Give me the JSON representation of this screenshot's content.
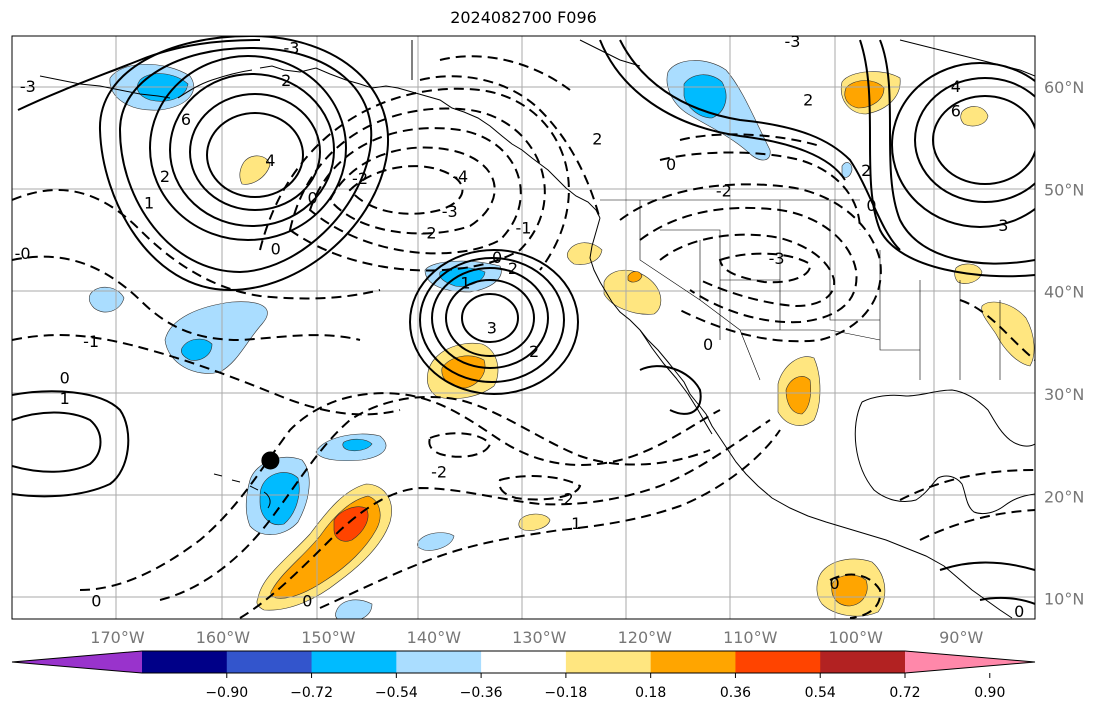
{
  "title": "2024082700 F096",
  "map": {
    "projection": "lon-lat",
    "lon_range": [
      -180,
      -83
    ],
    "lat_range": [
      8,
      65
    ],
    "gridlines": true,
    "lon_ticks": [
      {
        "lon": -170,
        "label": "170°W"
      },
      {
        "lon": -160,
        "label": "160°W"
      },
      {
        "lon": -150,
        "label": "150°W"
      },
      {
        "lon": -140,
        "label": "140°W"
      },
      {
        "lon": -130,
        "label": "130°W"
      },
      {
        "lon": -120,
        "label": "120°W"
      },
      {
        "lon": -110,
        "label": "110°W"
      },
      {
        "lon": -100,
        "label": "100°W"
      },
      {
        "lon": -90,
        "label": "90°W"
      }
    ],
    "lat_ticks": [
      {
        "lat": 60,
        "label": "60°N"
      },
      {
        "lat": 50,
        "label": "50°N"
      },
      {
        "lat": 40,
        "label": "40°N"
      },
      {
        "lat": 30,
        "label": "30°N"
      },
      {
        "lat": 20,
        "label": "20°N"
      },
      {
        "lat": 10,
        "label": "10°N"
      }
    ],
    "contour_labels": [
      {
        "text": "6",
        "lon": -163.5,
        "lat": 56.9
      },
      {
        "text": "4",
        "lon": -155.5,
        "lat": 52.9
      },
      {
        "text": "2",
        "lon": -165.5,
        "lat": 51.3
      },
      {
        "text": "1",
        "lon": -167.0,
        "lat": 48.7
      },
      {
        "text": "0",
        "lon": -151.5,
        "lat": 49.2
      },
      {
        "text": "0",
        "lon": -155.0,
        "lat": 44.2
      },
      {
        "text": "2",
        "lon": -154.0,
        "lat": 60.7
      },
      {
        "text": "-3",
        "lon": -178.5,
        "lat": 60.1
      },
      {
        "text": "-0",
        "lon": -179.0,
        "lat": 43.8
      },
      {
        "text": "-1",
        "lon": -172.5,
        "lat": 35.2
      },
      {
        "text": "0",
        "lon": -175.0,
        "lat": 31.6
      },
      {
        "text": "1",
        "lon": -175.0,
        "lat": 29.6
      },
      {
        "text": "-2",
        "lon": -147.0,
        "lat": 51.1
      },
      {
        "text": "-4",
        "lon": -137.5,
        "lat": 51.3
      },
      {
        "text": "-3",
        "lon": -138.5,
        "lat": 47.9
      },
      {
        "text": "-2",
        "lon": -140.5,
        "lat": 45.8
      },
      {
        "text": "-1",
        "lon": -131.5,
        "lat": 46.3
      },
      {
        "text": "0",
        "lon": -134.0,
        "lat": 43.4
      },
      {
        "text": "1",
        "lon": -137.0,
        "lat": 40.9
      },
      {
        "text": "2",
        "lon": -132.5,
        "lat": 42.3
      },
      {
        "text": "3",
        "lon": -134.5,
        "lat": 36.5
      },
      {
        "text": "2",
        "lon": -130.5,
        "lat": 34.2
      },
      {
        "text": "-3",
        "lon": -153.5,
        "lat": 63.9
      },
      {
        "text": "2",
        "lon": -124.5,
        "lat": 55.0
      },
      {
        "text": "0",
        "lon": -117.5,
        "lat": 52.5
      },
      {
        "text": "-2",
        "lon": -112.5,
        "lat": 49.9
      },
      {
        "text": "-3",
        "lon": -107.5,
        "lat": 43.3
      },
      {
        "text": "2",
        "lon": -104.5,
        "lat": 58.8
      },
      {
        "text": "-3",
        "lon": -106.0,
        "lat": 64.5
      },
      {
        "text": "4",
        "lon": -90.5,
        "lat": 60.1
      },
      {
        "text": "6",
        "lon": -90.5,
        "lat": 57.7
      },
      {
        "text": "2",
        "lon": -99.0,
        "lat": 51.9
      },
      {
        "text": "0",
        "lon": -98.5,
        "lat": 48.5
      },
      {
        "text": "3",
        "lon": -86.0,
        "lat": 46.5
      },
      {
        "text": "0",
        "lon": -114.0,
        "lat": 34.9
      },
      {
        "text": "-2",
        "lon": -139.5,
        "lat": 22.4
      },
      {
        "text": "-2",
        "lon": -127.5,
        "lat": 19.8
      },
      {
        "text": "1",
        "lon": -126.5,
        "lat": 17.4
      },
      {
        "text": "0",
        "lon": -172.0,
        "lat": 9.8
      },
      {
        "text": "0",
        "lon": -152.0,
        "lat": 9.8
      },
      {
        "text": "0",
        "lon": -102.0,
        "lat": 11.5
      },
      {
        "text": "0",
        "lon": -84.5,
        "lat": 8.8
      }
    ],
    "marker": {
      "lon": -155.5,
      "lat": 23.5
    }
  },
  "colorbar": {
    "levels": [
      "−0.90",
      "−0.72",
      "−0.54",
      "−0.36",
      "−0.18",
      "0.18",
      "0.36",
      "0.54",
      "0.72",
      "0.90"
    ],
    "colors": [
      "#9933cc",
      "#000088",
      "#3355cc",
      "#00bbff",
      "#aaddff",
      "#ffffff",
      "#ffe680",
      "#ffa500",
      "#ff4400",
      "#b22222",
      "#ff88aa"
    ]
  },
  "shading_colors": {
    "light_blue": "#aaddff",
    "blue": "#00bbff",
    "yellow": "#ffe680",
    "orange": "#ffa500",
    "red": "#ff4400"
  }
}
